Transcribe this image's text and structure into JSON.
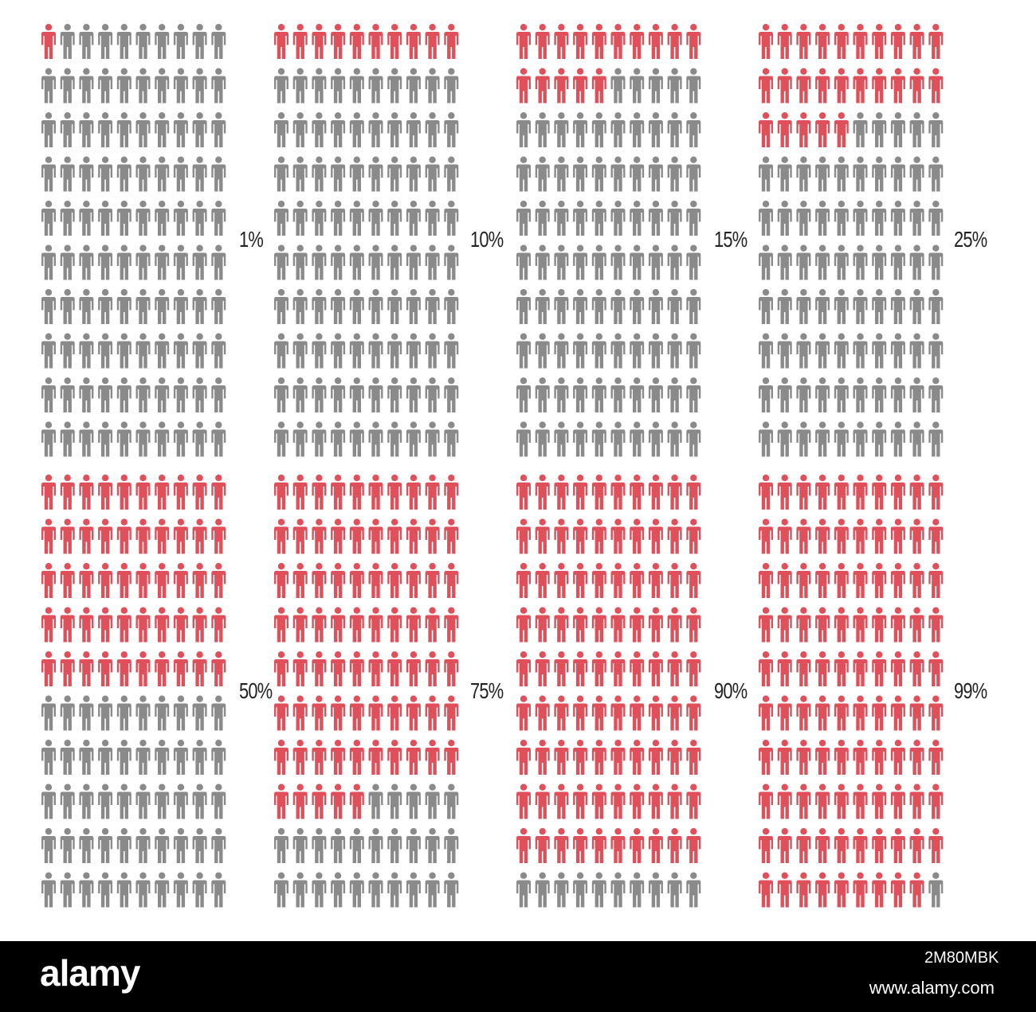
{
  "chart_data": {
    "type": "pictogram",
    "grid": {
      "rows": 10,
      "columns": 10,
      "total": 100
    },
    "colors": {
      "highlight": "#e0505a",
      "base": "#8a8a8a"
    },
    "panels": [
      {
        "label": "1%",
        "value": 1
      },
      {
        "label": "10%",
        "value": 10
      },
      {
        "label": "15%",
        "value": 15
      },
      {
        "label": "25%",
        "value": 25
      },
      {
        "label": "50%",
        "value": 50
      },
      {
        "label": "75%",
        "value": 75
      },
      {
        "label": "90%",
        "value": 90
      },
      {
        "label": "99%",
        "value": 99
      }
    ]
  },
  "watermark": {
    "brand": "alamy",
    "image_id": "2M80MBK",
    "url": "www.alamy.com"
  }
}
